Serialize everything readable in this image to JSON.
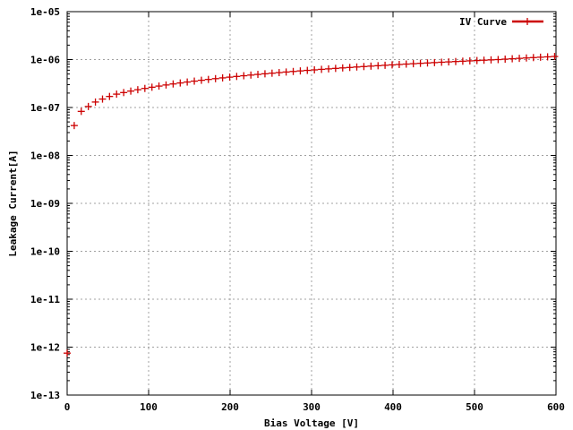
{
  "chart_data": {
    "type": "scatter",
    "title": "",
    "xlabel": "Bias Voltage [V]",
    "ylabel": "Leakage Current[A]",
    "xlim": [
      0,
      600
    ],
    "ylim": [
      1e-13,
      1e-05
    ],
    "yscale": "log",
    "grid": true,
    "legend_position": "top-right",
    "x_ticks": [
      "0",
      "100",
      "200",
      "300",
      "400",
      "500",
      "600"
    ],
    "y_ticks": [
      "1e-13",
      "1e-12",
      "1e-11",
      "1e-10",
      "1e-09",
      "1e-08",
      "1e-07",
      "1e-06",
      "1e-05"
    ],
    "series": [
      {
        "name": "IV Curve",
        "color": "#cc0000",
        "marker": "plus",
        "x": [
          0,
          8.7,
          17.3,
          26,
          34.7,
          43.4,
          52,
          60.7,
          69.4,
          78.1,
          86.7,
          95.4,
          104.1,
          112.7,
          121.4,
          130.1,
          138.8,
          147.4,
          156.1,
          164.8,
          173.4,
          182.1,
          190.8,
          199.5,
          208.1,
          216.8,
          225.5,
          234.1,
          242.8,
          251.5,
          260.2,
          268.8,
          277.5,
          286.2,
          294.8,
          303.5,
          312.2,
          320.9,
          329.5,
          338.2,
          346.9,
          355.5,
          364.2,
          372.9,
          381.6,
          390.2,
          398.9,
          407.6,
          416.2,
          424.9,
          433.6,
          442.3,
          450.9,
          459.6,
          468.3,
          476.9,
          485.6,
          494.3,
          503,
          511.6,
          520.3,
          529,
          537.6,
          546.3,
          555,
          563.7,
          572.3,
          581,
          589.7,
          598.3
        ],
        "y": [
          7.5e-13,
          4.2e-08,
          8.3e-08,
          1.05e-07,
          1.3e-07,
          1.5e-07,
          1.7e-07,
          1.9e-07,
          2.05e-07,
          2.2e-07,
          2.35e-07,
          2.5e-07,
          2.65e-07,
          2.8e-07,
          2.95e-07,
          3.1e-07,
          3.25e-07,
          3.4e-07,
          3.55e-07,
          3.7e-07,
          3.85e-07,
          4e-07,
          4.15e-07,
          4.3e-07,
          4.45e-07,
          4.6e-07,
          4.75e-07,
          4.9e-07,
          5.05e-07,
          5.2e-07,
          5.35e-07,
          5.5e-07,
          5.65e-07,
          5.8e-07,
          5.95e-07,
          6.1e-07,
          6.25e-07,
          6.4e-07,
          6.55e-07,
          6.7e-07,
          6.85e-07,
          7e-07,
          7.15e-07,
          7.3e-07,
          7.45e-07,
          7.6e-07,
          7.75e-07,
          7.9e-07,
          8.05e-07,
          8.2e-07,
          8.35e-07,
          8.5e-07,
          8.65e-07,
          8.8e-07,
          8.95e-07,
          9.1e-07,
          9.25e-07,
          9.4e-07,
          9.55e-07,
          9.7e-07,
          9.85e-07,
          1e-06,
          1.02e-06,
          1.04e-06,
          1.06e-06,
          1.08e-06,
          1.1e-06,
          1.12e-06,
          1.14e-06,
          1.16e-06
        ]
      }
    ]
  }
}
